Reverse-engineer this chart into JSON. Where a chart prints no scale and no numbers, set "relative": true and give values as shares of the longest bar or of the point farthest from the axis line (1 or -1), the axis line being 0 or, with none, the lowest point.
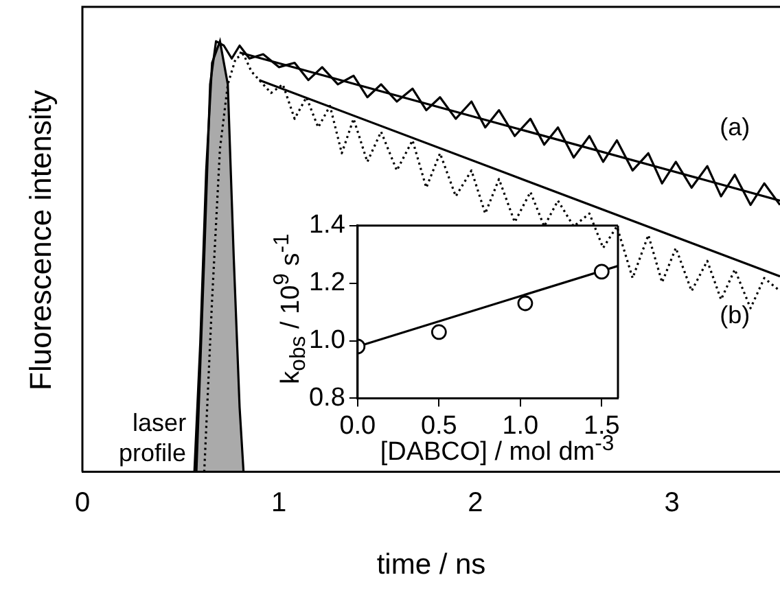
{
  "chart_data": [
    {
      "type": "line",
      "relative": true,
      "xlabel": "time / ns",
      "ylabel": "Fluorescence intensity",
      "xlim": [
        0,
        3.55
      ],
      "xticks": [
        0,
        1,
        2,
        3
      ],
      "grid": false,
      "legend": false,
      "series": [
        {
          "type": "area",
          "name": "laser profile",
          "color": "#000000",
          "x": [
            0.57,
            0.6,
            0.63,
            0.66,
            0.7,
            0.74,
            0.77,
            0.8,
            0.82
          ],
          "values": [
            0,
            0.3,
            0.7,
            0.95,
            1.0,
            0.9,
            0.5,
            0.15,
            0
          ]
        },
        {
          "name": "(a)",
          "color": "#000000",
          "line_style": "solid",
          "x": [
            0.58,
            0.62,
            0.65,
            0.68,
            0.72,
            0.76,
            0.8,
            0.85,
            0.92,
            1.0,
            1.08,
            1.15,
            1.22,
            1.3,
            1.38,
            1.45,
            1.52,
            1.6,
            1.68,
            1.75,
            1.82,
            1.9,
            1.98,
            2.05,
            2.12,
            2.2,
            2.28,
            2.35,
            2.42,
            2.5,
            2.58,
            2.65,
            2.72,
            2.8,
            2.88,
            2.95,
            3.02,
            3.1,
            3.18,
            3.25,
            3.32,
            3.4,
            3.47,
            3.55
          ],
          "values": [
            0,
            0.5,
            0.9,
            1.0,
            0.99,
            0.96,
            0.99,
            0.96,
            0.97,
            0.94,
            0.95,
            0.91,
            0.94,
            0.9,
            0.92,
            0.87,
            0.9,
            0.86,
            0.89,
            0.84,
            0.87,
            0.82,
            0.86,
            0.8,
            0.84,
            0.78,
            0.82,
            0.76,
            0.8,
            0.73,
            0.78,
            0.72,
            0.77,
            0.7,
            0.74,
            0.67,
            0.72,
            0.66,
            0.71,
            0.64,
            0.69,
            0.62,
            0.67,
            0.62
          ]
        },
        {
          "name": "(b)",
          "color": "#000000",
          "line_style": "dotted",
          "x": [
            0.62,
            0.66,
            0.7,
            0.74,
            0.78,
            0.82,
            0.86,
            0.9,
            0.96,
            1.02,
            1.08,
            1.14,
            1.2,
            1.26,
            1.32,
            1.38,
            1.45,
            1.52,
            1.6,
            1.68,
            1.75,
            1.82,
            1.9,
            1.98,
            2.05,
            2.12,
            2.2,
            2.28,
            2.35,
            2.42,
            2.5,
            2.58,
            2.65,
            2.72,
            2.8,
            2.88,
            2.95,
            3.02,
            3.1,
            3.18,
            3.25,
            3.32,
            3.4,
            3.47,
            3.55
          ],
          "values": [
            0,
            0.4,
            0.75,
            0.9,
            0.96,
            0.97,
            0.93,
            0.91,
            0.88,
            0.9,
            0.82,
            0.87,
            0.8,
            0.85,
            0.74,
            0.82,
            0.72,
            0.79,
            0.7,
            0.77,
            0.66,
            0.74,
            0.64,
            0.7,
            0.6,
            0.68,
            0.58,
            0.65,
            0.57,
            0.63,
            0.57,
            0.6,
            0.52,
            0.57,
            0.45,
            0.55,
            0.44,
            0.52,
            0.42,
            0.49,
            0.4,
            0.47,
            0.38,
            0.45,
            0.42
          ]
        },
        {
          "color": "#000000",
          "line_style": "solid",
          "x": [
            0.8,
            3.55
          ],
          "values": [
            0.974,
            0.63
          ]
        },
        {
          "color": "#000000",
          "line_style": "solid",
          "x": [
            0.9,
            3.55
          ],
          "values": [
            0.91,
            0.454
          ]
        }
      ]
    },
    {
      "type": "scatter",
      "xlabel": "[DABCO] / mol dm$^{-3}$",
      "ylabel": "k$_{obs}$ / 10$^{9}$ s$^{-1}$",
      "xlim": [
        0,
        1.6
      ],
      "xticks": [
        {
          "value": 0,
          "label": "0.0"
        },
        {
          "value": 0.5,
          "label": "0.5"
        },
        {
          "value": 1,
          "label": "1.0"
        },
        {
          "value": 1.5,
          "label": "1.5"
        }
      ],
      "ylim": [
        0.8,
        1.4
      ],
      "yticks": [
        0.8,
        {
          "value": 1,
          "label": "1.0"
        },
        1.2,
        1.4
      ],
      "grid": false,
      "legend": false,
      "series": [
        {
          "color": "#000000",
          "marker": "circle",
          "x": [
            0,
            0.5,
            1.03,
            1.5
          ],
          "values": [
            0.98,
            1.03,
            1.13,
            1.24
          ]
        },
        {
          "type": "line",
          "color": "#000000",
          "x": [
            0,
            1.6
          ],
          "values": [
            0.98,
            1.26
          ]
        }
      ]
    }
  ]
}
